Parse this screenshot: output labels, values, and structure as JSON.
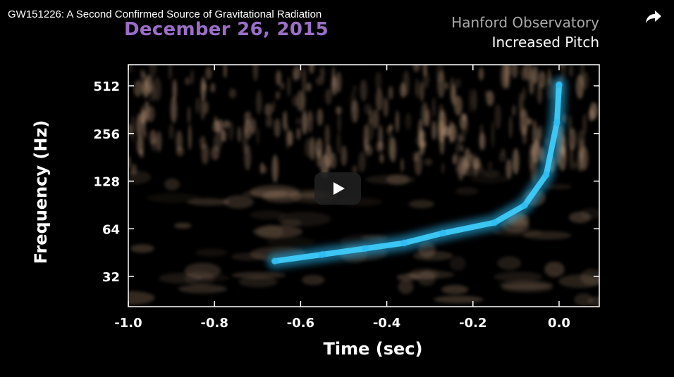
{
  "video": {
    "title": "GW151226: A Second Confirmed Source of Gravitational Radiation",
    "share_icon": "share-arrow-icon",
    "play_icon": "play-icon"
  },
  "overlay": {
    "date": "December 26, 2015",
    "observatory": "Hanford Observatory",
    "mode": "Increased Pitch"
  },
  "chart_data": {
    "type": "heatmap",
    "title": "",
    "xlabel": "Time (sec)",
    "ylabel": "Frequency (Hz)",
    "xlim": [
      -1.0,
      0.1
    ],
    "ylim": [
      24,
      700
    ],
    "yscale": "log2",
    "x_ticks": [
      -1.0,
      -0.8,
      -0.6,
      -0.4,
      -0.2,
      0.0
    ],
    "x_tick_labels": [
      "-1.0",
      "-0.8",
      "-0.6",
      "-0.4",
      "-0.2",
      "0.0"
    ],
    "y_ticks": [
      32,
      64,
      128,
      256,
      512
    ],
    "y_tick_labels": [
      "32",
      "64",
      "128",
      "256",
      "512"
    ],
    "signal_color": "#2ab8f0",
    "noise_color": "#b89478",
    "background": "#000000",
    "signal_track": [
      {
        "t": -0.66,
        "f": 40
      },
      {
        "t": -0.55,
        "f": 44
      },
      {
        "t": -0.45,
        "f": 48
      },
      {
        "t": -0.36,
        "f": 52
      },
      {
        "t": -0.27,
        "f": 60
      },
      {
        "t": -0.15,
        "f": 70
      },
      {
        "t": -0.08,
        "f": 90
      },
      {
        "t": -0.03,
        "f": 140
      },
      {
        "t": -0.005,
        "f": 300
      },
      {
        "t": 0.0,
        "f": 520
      }
    ]
  }
}
